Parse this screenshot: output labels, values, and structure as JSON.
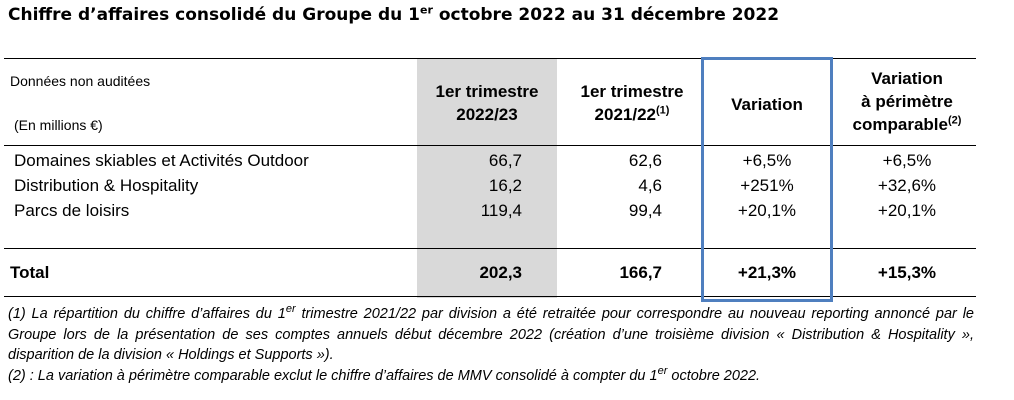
{
  "title": {
    "before": "Chiffre d’affaires consolidé du Groupe du 1",
    "sup": "er",
    "after": " octobre 2022 au 31 décembre 2022"
  },
  "table": {
    "note_label": "Données non auditées",
    "unit_label": "(En millions €)",
    "headers": {
      "q1_2022_23": {
        "line1": "1er trimestre",
        "line2": "2022/23"
      },
      "q1_2021_22": {
        "line1": "1er trimestre",
        "line2": "2021/22",
        "sup": "(1)"
      },
      "variation": "Variation",
      "variation_comparable": {
        "line1": "Variation",
        "line2": "à périmètre",
        "line3": "comparable",
        "sup": "(2)"
      }
    },
    "rows": [
      {
        "label": "Domaines skiables et Activités Outdoor",
        "q1_2022_23": "66,7",
        "q1_2021_22": "62,6",
        "variation": "+6,5%",
        "variation_comparable": "+6,5%"
      },
      {
        "label": "Distribution & Hospitality",
        "q1_2022_23": "16,2",
        "q1_2021_22": "4,6",
        "variation": "+251%",
        "variation_comparable": "+32,6%"
      },
      {
        "label": "Parcs de loisirs",
        "q1_2022_23": "119,4",
        "q1_2021_22": "99,4",
        "variation": "+20,1%",
        "variation_comparable": "+20,1%"
      }
    ],
    "total": {
      "label": "Total",
      "q1_2022_23": "202,3",
      "q1_2021_22": "166,7",
      "variation": "+21,3%",
      "variation_comparable": "+15,3%"
    }
  },
  "footnotes": {
    "note1": {
      "before": "(1) La répartition du chiffre d’affaires du 1",
      "sup": "er",
      "after": " trimestre 2021/22 par division a été retraitée pour correspondre au nouveau reporting annoncé par le Groupe lors de la présentation de ses comptes annuels début décembre 2022 (création d’une troisième division « Distribution & Hospitality », disparition de la division « Holdings et Supports »)."
    },
    "note2": {
      "before": "(2) : La variation à périmètre comparable exclut le chiffre d’affaires de MMV consolidé à compter du 1",
      "sup": "er",
      "after": " octobre 2022."
    }
  },
  "colors": {
    "shade": "#d9d9d9",
    "variation_box": "#4f7fbf"
  }
}
